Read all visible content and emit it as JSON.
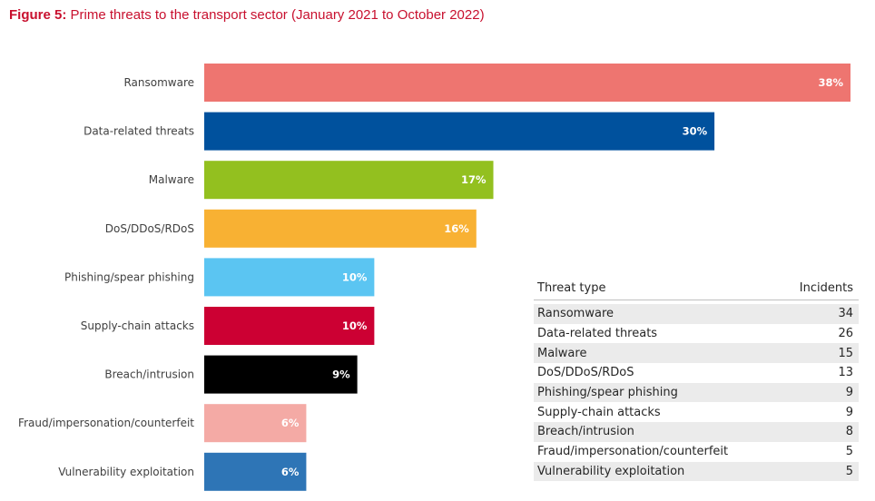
{
  "figure": {
    "label": "Figure 5:",
    "title": "Prime threats to the transport sector (January 2021 to October 2022)"
  },
  "chart_data": {
    "type": "bar",
    "orientation": "horizontal",
    "categories": [
      "Ransomware",
      "Data-related threats",
      "Malware",
      "DoS/DDoS/RDoS",
      "Phishing/spear phishing",
      "Supply-chain attacks",
      "Breach/intrusion",
      "Fraud/impersonation/counterfeit",
      "Vulnerability exploitation"
    ],
    "values": [
      38,
      30,
      17,
      16,
      10,
      10,
      9,
      6,
      6
    ],
    "value_labels": [
      "38%",
      "30%",
      "17%",
      "16%",
      "10%",
      "10%",
      "9%",
      "6%",
      "6%"
    ],
    "colors": [
      "#ee7570",
      "#00519d",
      "#93c01f",
      "#f8b133",
      "#5bc5f2",
      "#cc0033",
      "#000000",
      "#f4aaa5",
      "#2e75b6"
    ],
    "xlim": [
      0,
      38
    ],
    "grid": false,
    "legend": "none"
  },
  "table": {
    "headers": [
      "Threat type",
      "Incidents"
    ],
    "rows": [
      [
        "Ransomware",
        "34"
      ],
      [
        "Data-related threats",
        "26"
      ],
      [
        "Malware",
        "15"
      ],
      [
        "DoS/DDoS/RDoS",
        "13"
      ],
      [
        "Phishing/spear phishing",
        "9"
      ],
      [
        "Supply-chain attacks",
        "9"
      ],
      [
        "Breach/intrusion",
        "8"
      ],
      [
        "Fraud/impersonation/counterfeit",
        "5"
      ],
      [
        "Vulnerability exploitation",
        "5"
      ]
    ]
  }
}
